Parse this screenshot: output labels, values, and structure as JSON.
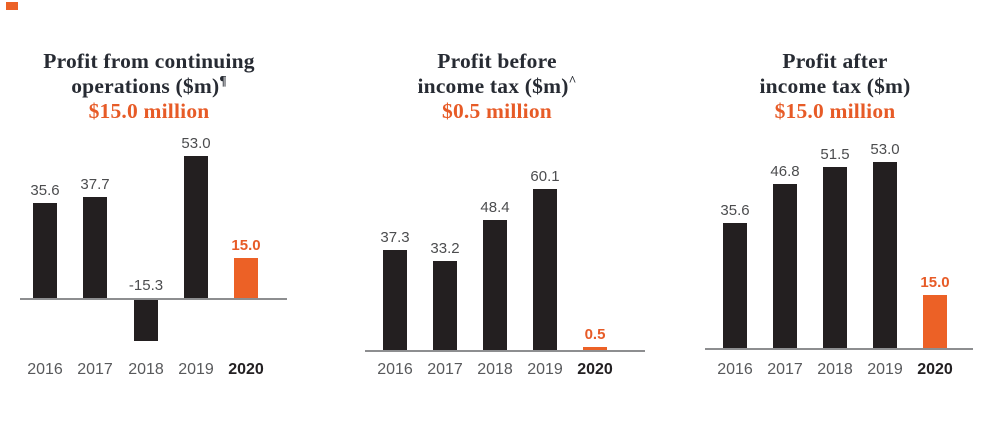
{
  "colors": {
    "accent_orange": "#ec6126",
    "accent_orange_text": "#e75b27",
    "bar_black": "#231f20",
    "axis_gray": "#8d8e90",
    "title_dark": "#272b33",
    "label_gray": "#4c4d4f",
    "year_gray": "#58595b"
  },
  "chart_data": [
    {
      "type": "bar",
      "title_lines": [
        "Profit from continuing",
        "operations ($m)"
      ],
      "title_superscript": "¶",
      "subtitle": "$15.0 million",
      "categories": [
        "2016",
        "2017",
        "2018",
        "2019",
        "2020"
      ],
      "values": [
        35.6,
        37.7,
        -15.3,
        53.0,
        15.0
      ],
      "highlight_index": 4,
      "ylim": [
        -20,
        60
      ],
      "grid": false,
      "legend": null
    },
    {
      "type": "bar",
      "title_lines": [
        "Profit before",
        "income tax ($m)"
      ],
      "title_superscript": "^",
      "subtitle": "$0.5 million",
      "categories": [
        "2016",
        "2017",
        "2018",
        "2019",
        "2020"
      ],
      "values": [
        37.3,
        33.2,
        48.4,
        60.1,
        0.5
      ],
      "highlight_index": 4,
      "ylim": [
        0,
        65
      ],
      "grid": false,
      "legend": null
    },
    {
      "type": "bar",
      "title_lines": [
        "Profit after",
        "income tax ($m)"
      ],
      "title_superscript": "",
      "subtitle": "$15.0 million",
      "categories": [
        "2016",
        "2017",
        "2018",
        "2019",
        "2020"
      ],
      "values": [
        35.6,
        46.8,
        51.5,
        53.0,
        15.0
      ],
      "highlight_index": 4,
      "ylim": [
        0,
        60
      ],
      "grid": false,
      "legend": null
    }
  ]
}
